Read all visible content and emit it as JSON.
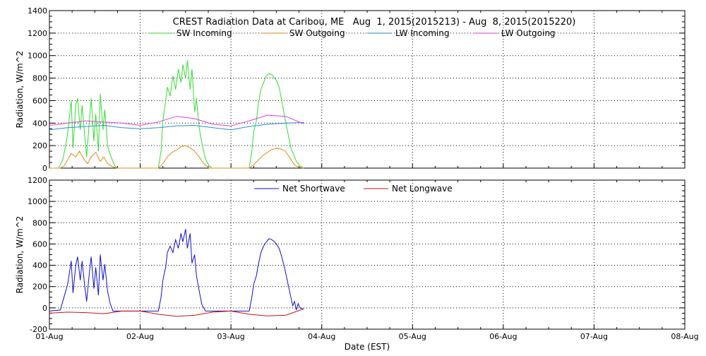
{
  "title": "CREST Radiation Data at Caribou, ME   Aug  1, 2015(2015213) - Aug  8, 2015(2015220)",
  "xlabel": "Date (EST)",
  "colors": {
    "sw_in": "#33dd33",
    "sw_out": "#e08a1a",
    "lw_in": "#2a8fd6",
    "lw_out": "#e23ce2",
    "net_sw": "#1010cc",
    "net_lw": "#cc1111",
    "grid": "#000000"
  },
  "chart_data": [
    {
      "type": "line",
      "name": "top",
      "ylabel": "Radiation, W/m^2",
      "ylim": [
        0,
        1400
      ],
      "yticks": [
        0,
        200,
        400,
        600,
        800,
        1000,
        1200,
        1400
      ],
      "xlim_days": [
        0,
        7
      ],
      "xticks": [
        "01-Aug",
        "02-Aug",
        "03-Aug",
        "04-Aug",
        "05-Aug",
        "06-Aug",
        "07-Aug",
        "08-Aug"
      ],
      "grid": true,
      "legend": "top-center",
      "series": [
        {
          "name": "SW Incoming",
          "color_key": "sw_in",
          "x": [
            0.0,
            0.1,
            0.15,
            0.2,
            0.24,
            0.26,
            0.29,
            0.31,
            0.34,
            0.36,
            0.39,
            0.41,
            0.44,
            0.46,
            0.49,
            0.51,
            0.54,
            0.56,
            0.59,
            0.61,
            0.64,
            0.66,
            0.69,
            0.72,
            0.75,
            0.78,
            0.82,
            1.0,
            1.2,
            1.23,
            1.25,
            1.28,
            1.3,
            1.33,
            1.36,
            1.39,
            1.42,
            1.45,
            1.47,
            1.5,
            1.52,
            1.55,
            1.57,
            1.6,
            1.62,
            1.65,
            1.68,
            1.72,
            1.76,
            1.79,
            1.83,
            2.0,
            2.2,
            2.23,
            2.25,
            2.28,
            2.3,
            2.33,
            2.36,
            2.39,
            2.42,
            2.45,
            2.48,
            2.5,
            2.53,
            2.56,
            2.6,
            2.63,
            2.66,
            2.69,
            2.72,
            2.74,
            2.76,
            2.78,
            2.8
          ],
          "y": [
            0,
            0,
            80,
            300,
            600,
            180,
            560,
            620,
            340,
            560,
            280,
            100,
            420,
            620,
            240,
            480,
            150,
            660,
            340,
            520,
            200,
            140,
            80,
            20,
            0,
            0,
            0,
            0,
            0,
            150,
            420,
            600,
            720,
            640,
            820,
            700,
            880,
            760,
            920,
            800,
            960,
            700,
            880,
            500,
            620,
            360,
            220,
            80,
            20,
            0,
            0,
            0,
            0,
            150,
            320,
            420,
            560,
            700,
            760,
            820,
            840,
            830,
            800,
            780,
            720,
            600,
            420,
            300,
            180,
            120,
            60,
            40,
            20,
            10,
            0
          ]
        },
        {
          "name": "SW Outgoing",
          "color_key": "sw_out",
          "x": [
            0.0,
            0.12,
            0.16,
            0.2,
            0.24,
            0.29,
            0.33,
            0.38,
            0.42,
            0.46,
            0.51,
            0.56,
            0.6,
            0.64,
            0.7,
            0.75,
            1.0,
            1.2,
            1.25,
            1.3,
            1.35,
            1.4,
            1.45,
            1.5,
            1.55,
            1.6,
            1.65,
            1.7,
            1.76,
            2.0,
            2.2,
            2.25,
            2.3,
            2.35,
            2.4,
            2.45,
            2.5,
            2.55,
            2.6,
            2.65,
            2.7,
            2.74,
            2.8
          ],
          "y": [
            0,
            0,
            20,
            70,
            130,
            100,
            150,
            80,
            40,
            100,
            140,
            60,
            100,
            40,
            10,
            0,
            0,
            0,
            40,
            100,
            140,
            160,
            190,
            200,
            180,
            150,
            100,
            40,
            0,
            0,
            0,
            30,
            70,
            110,
            140,
            165,
            175,
            170,
            150,
            90,
            30,
            10,
            0
          ]
        },
        {
          "name": "LW Incoming",
          "color_key": "lw_in",
          "x": [
            0.0,
            0.2,
            0.4,
            0.6,
            0.8,
            1.0,
            1.2,
            1.4,
            1.6,
            1.8,
            2.0,
            2.2,
            2.4,
            2.6,
            2.8
          ],
          "y": [
            340,
            360,
            370,
            380,
            360,
            350,
            360,
            375,
            380,
            360,
            340,
            370,
            390,
            400,
            405
          ]
        },
        {
          "name": "LW Outgoing",
          "color_key": "lw_out",
          "x": [
            0.0,
            0.2,
            0.4,
            0.6,
            0.8,
            1.0,
            1.2,
            1.4,
            1.6,
            1.8,
            2.0,
            2.2,
            2.4,
            2.6,
            2.8
          ],
          "y": [
            380,
            400,
            420,
            410,
            400,
            380,
            410,
            460,
            440,
            390,
            375,
            420,
            470,
            460,
            395
          ]
        }
      ]
    },
    {
      "type": "line",
      "name": "bottom",
      "ylabel": "Radiation, W/m^2",
      "ylim": [
        -200,
        1200
      ],
      "yticks": [
        -200,
        0,
        200,
        400,
        600,
        800,
        1000,
        1200
      ],
      "xlim_days": [
        0,
        7
      ],
      "xticks": [
        "01-Aug",
        "02-Aug",
        "03-Aug",
        "04-Aug",
        "05-Aug",
        "06-Aug",
        "07-Aug",
        "08-Aug"
      ],
      "grid": true,
      "legend": "top-center",
      "series": [
        {
          "name": "Net Shortwave",
          "color_key": "net_sw",
          "x": [
            0.0,
            0.12,
            0.16,
            0.2,
            0.24,
            0.26,
            0.29,
            0.31,
            0.34,
            0.36,
            0.39,
            0.41,
            0.44,
            0.46,
            0.49,
            0.51,
            0.54,
            0.56,
            0.59,
            0.61,
            0.64,
            0.67,
            0.7,
            0.75,
            1.0,
            1.2,
            1.23,
            1.25,
            1.28,
            1.3,
            1.33,
            1.36,
            1.39,
            1.42,
            1.45,
            1.47,
            1.5,
            1.52,
            1.55,
            1.57,
            1.6,
            1.62,
            1.65,
            1.68,
            1.72,
            1.76,
            2.0,
            2.2,
            2.23,
            2.25,
            2.28,
            2.3,
            2.33,
            2.36,
            2.39,
            2.42,
            2.45,
            2.48,
            2.5,
            2.53,
            2.56,
            2.6,
            2.63,
            2.66,
            2.68,
            2.7,
            2.72,
            2.74,
            2.76,
            2.8
          ],
          "y": [
            -30,
            -20,
            100,
            220,
            440,
            140,
            400,
            480,
            260,
            440,
            200,
            60,
            330,
            480,
            180,
            380,
            120,
            500,
            260,
            410,
            160,
            40,
            -30,
            -30,
            -30,
            -30,
            100,
            260,
            380,
            520,
            580,
            520,
            640,
            560,
            700,
            620,
            740,
            560,
            700,
            420,
            500,
            300,
            160,
            30,
            -30,
            -30,
            -30,
            -30,
            100,
            220,
            300,
            400,
            520,
            580,
            620,
            650,
            640,
            620,
            600,
            560,
            480,
            340,
            220,
            100,
            20,
            60,
            -20,
            40,
            0,
            -10
          ]
        },
        {
          "name": "Net Longwave",
          "color_key": "net_lw",
          "x": [
            0.0,
            0.2,
            0.4,
            0.6,
            0.8,
            1.0,
            1.2,
            1.4,
            1.6,
            1.8,
            2.0,
            2.2,
            2.4,
            2.6,
            2.8
          ],
          "y": [
            -50,
            -40,
            -45,
            -55,
            -30,
            -30,
            -60,
            -80,
            -70,
            -40,
            -30,
            -60,
            -75,
            -70,
            -10
          ]
        }
      ]
    }
  ]
}
